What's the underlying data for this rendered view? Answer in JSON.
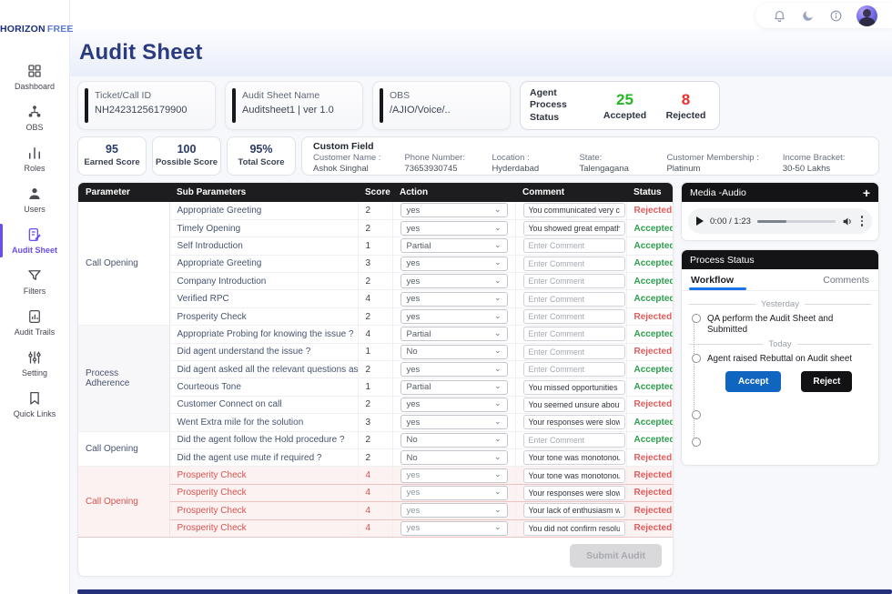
{
  "colors": {
    "accent_purple": "#6a4cf1",
    "accepted_green": "#2e9e4f",
    "rejected_red": "#e25c5c",
    "accepted_bright": "#25b825",
    "rejected_bright": "#ef2d2d",
    "accept_blue": "#1065c0",
    "header_navy": "#2a3b80"
  },
  "topbar": {
    "icons": [
      "bell",
      "moon",
      "info"
    ]
  },
  "sidebar": {
    "logo": {
      "bold": "HORIZON",
      "light": "FREE"
    },
    "items": [
      {
        "label": "Dashboard",
        "icon": "grid",
        "active": false
      },
      {
        "label": "OBS",
        "icon": "hierarchy",
        "active": false
      },
      {
        "label": "Roles",
        "icon": "bars",
        "active": false
      },
      {
        "label": "Users",
        "icon": "user",
        "active": false
      },
      {
        "label": "Audit Sheet",
        "icon": "audit-sheet",
        "active": true
      },
      {
        "label": "Filters",
        "icon": "funnel",
        "active": false
      },
      {
        "label": "Audit Trails",
        "icon": "trail-doc",
        "active": false
      },
      {
        "label": "Setting",
        "icon": "sliders",
        "active": false
      },
      {
        "label": "Quick Links",
        "icon": "bookmark",
        "active": false
      }
    ]
  },
  "header": {
    "title": "Audit Sheet"
  },
  "info_cards": [
    {
      "label": "Ticket/Call ID",
      "value": "NH24231256179900"
    },
    {
      "label": "Audit Sheet Name",
      "value": "Auditsheet1 | ver 1.0"
    },
    {
      "label": "OBS",
      "value": "/AJIO/Voice/.."
    }
  ],
  "agent_process_status": {
    "label": "Agent Process Status",
    "accepted": {
      "value": "25",
      "label": "Accepted"
    },
    "rejected": {
      "value": "8",
      "label": "Rejected"
    }
  },
  "score_cards": [
    {
      "value": "95",
      "label": "Earned Score"
    },
    {
      "value": "100",
      "label": "Possible Score"
    },
    {
      "value": "95%",
      "label": "Total Score"
    }
  ],
  "custom_field": {
    "title": "Custom Field",
    "fields": [
      {
        "label": "Customer Name :",
        "value": "Ashok Singhal"
      },
      {
        "label": "Phone Number:",
        "value": "73653930745"
      },
      {
        "label": "Location :",
        "value": "Hyderdabad"
      },
      {
        "label": "State:",
        "value": "Talengagana"
      },
      {
        "label": "Customer Membership :",
        "value": "Platinum"
      },
      {
        "label": "Income Bracket:",
        "value": "30-50 Lakhs"
      }
    ]
  },
  "table": {
    "columns": [
      "Parameter",
      "Sub Parameters",
      "Score",
      "Action",
      "Comment",
      "Status"
    ],
    "comment_placeholder": "Enter Comment",
    "groups": [
      {
        "parameter": "Call Opening",
        "highlighted": false,
        "shade": false,
        "rows": [
          {
            "sub": "Appropriate Greeting",
            "score": "2",
            "action": "yes",
            "comment": "You communicated very clea",
            "status": "Rejected"
          },
          {
            "sub": "Timely Opening",
            "score": "2",
            "action": "yes",
            "comment": "You showed great empathy towarc",
            "status": "Accepted"
          },
          {
            "sub": "Self Introduction",
            "score": "1",
            "action": "Partial",
            "comment": "",
            "status": "Accepted"
          },
          {
            "sub": "Appropriate Greeting",
            "score": "3",
            "action": "yes",
            "comment": "",
            "status": "Accepted"
          },
          {
            "sub": "Company Introduction",
            "score": "2",
            "action": "yes",
            "comment": "",
            "status": "Accepted"
          },
          {
            "sub": "Verified RPC",
            "score": "4",
            "action": "yes",
            "comment": "",
            "status": "Accepted"
          },
          {
            "sub": "Prosperity Check",
            "score": "2",
            "action": "yes",
            "comment": "",
            "status": "Rejected"
          }
        ]
      },
      {
        "parameter": "Process Adherence",
        "highlighted": false,
        "shade": true,
        "rows": [
          {
            "sub": "Appropriate Probing for knowing the issue ?",
            "score": "4",
            "action": "Partial",
            "comment": "",
            "status": "Accepted"
          },
          {
            "sub": "Did agent understand the issue ?",
            "score": "1",
            "action": "No",
            "comment": "",
            "status": "Rejected"
          },
          {
            "sub": "Did agent asked all the relevant questions as per the issue ?",
            "score": "2",
            "action": "yes",
            "comment": "",
            "status": "Accepted"
          },
          {
            "sub": "Courteous Tone",
            "score": "1",
            "action": "Partial",
            "comment": "You missed opportunities to show",
            "status": "Accepted"
          },
          {
            "sub": "Customer Connect on call",
            "score": "2",
            "action": "yes",
            "comment": "You seemed unsure about some pr",
            "status": "Rejected"
          },
          {
            "sub": "Went Extra mile for the solution",
            "score": "3",
            "action": "yes",
            "comment": "Your responses were slower than n",
            "status": "Accepted"
          }
        ]
      },
      {
        "parameter": "Call Opening",
        "highlighted": false,
        "shade": false,
        "rows": [
          {
            "sub": "Did the agent follow the Hold procedure ?",
            "score": "2",
            "action": "No",
            "comment": "",
            "status": "Accepted"
          },
          {
            "sub": "Did the agent use mute if required ?",
            "score": "2",
            "action": "No",
            "comment": "Your tone was monotonous.\"",
            "status": "Rejected"
          }
        ]
      },
      {
        "parameter": "Call Opening",
        "highlighted": true,
        "shade": false,
        "rows": [
          {
            "sub": "Prosperity Check",
            "score": "4",
            "action": "yes",
            "comment": "Your tone was monotonous.\"",
            "status": "Rejected"
          },
          {
            "sub": "Prosperity Check",
            "score": "4",
            "action": "yes",
            "comment": "Your responses were slower than n",
            "status": "Rejected"
          },
          {
            "sub": "Prosperity Check",
            "score": "4",
            "action": "yes",
            "comment": "Your lack of enthusiasm was notice",
            "status": "Rejected"
          },
          {
            "sub": "Prosperity Check",
            "score": "4",
            "action": "yes",
            "comment": "You did not confirm resolution with",
            "status": "Rejected"
          }
        ]
      }
    ],
    "submit_label": "Submit Audit"
  },
  "media": {
    "header": "Media -Audio",
    "add_label": "+",
    "player": {
      "time": "0:00 / 1:23"
    }
  },
  "process_status": {
    "header": "Process Status",
    "tabs": [
      "Workflow",
      "Comments"
    ],
    "timeline": [
      {
        "type": "divider",
        "label": "Yesterday"
      },
      {
        "type": "item",
        "text": "QA perform the Audit Sheet and Submitted"
      },
      {
        "type": "divider",
        "label": "Today"
      },
      {
        "type": "item",
        "text": "Agent raised Rebuttal on Audit sheet"
      },
      {
        "type": "buttons",
        "accept": "Accept",
        "reject": "Reject"
      },
      {
        "type": "item",
        "text": ""
      },
      {
        "type": "item",
        "text": ""
      }
    ]
  }
}
